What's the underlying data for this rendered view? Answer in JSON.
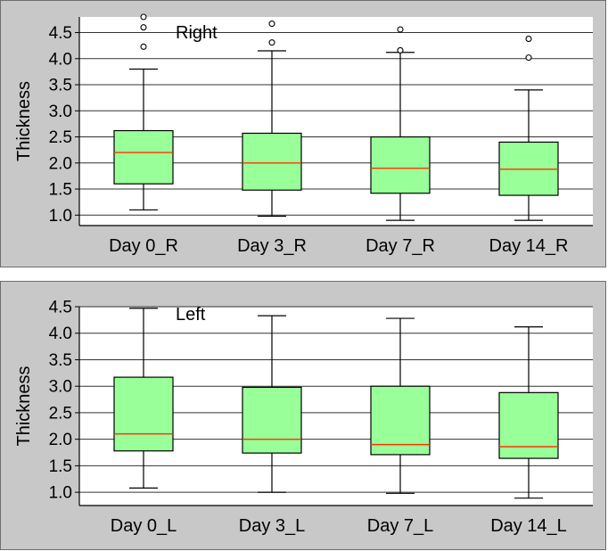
{
  "chart_data": [
    {
      "type": "box",
      "title": "Right",
      "xlabel": "",
      "ylabel": "Thickness",
      "ylim": [
        0.8,
        4.8
      ],
      "yticks": [
        1.0,
        1.5,
        2.0,
        2.5,
        3.0,
        3.5,
        4.0,
        4.5
      ],
      "ytick_labels": [
        "1.0",
        "1.5",
        "2.0",
        "2.5",
        "3.0",
        "3.5",
        "4.0",
        "4.5"
      ],
      "grid": true,
      "box_color": "#99ff99",
      "median_color": "#ff3300",
      "categories": [
        "Day 0_R",
        "Day 3_R",
        "Day 7_R",
        "Day 14_R"
      ],
      "boxes": [
        {
          "whisker_low": 1.1,
          "q1": 1.6,
          "median": 2.2,
          "q3": 2.62,
          "whisker_high": 3.8,
          "outliers": [
            4.23,
            4.6,
            4.8
          ]
        },
        {
          "whisker_low": 0.98,
          "q1": 1.48,
          "median": 2.0,
          "q3": 2.57,
          "whisker_high": 4.15,
          "outliers": [
            4.31,
            4.67
          ]
        },
        {
          "whisker_low": 0.9,
          "q1": 1.42,
          "median": 1.9,
          "q3": 2.5,
          "whisker_high": 4.12,
          "outliers": [
            4.16,
            4.56
          ]
        },
        {
          "whisker_low": 0.9,
          "q1": 1.38,
          "median": 1.88,
          "q3": 2.4,
          "whisker_high": 3.4,
          "outliers": [
            4.02,
            4.38
          ]
        }
      ]
    },
    {
      "type": "box",
      "title": "Left",
      "xlabel": "",
      "ylabel": "Thickness",
      "ylim": [
        0.75,
        4.5
      ],
      "yticks": [
        1.0,
        1.5,
        2.0,
        2.5,
        3.0,
        3.5,
        4.0,
        4.5
      ],
      "ytick_labels": [
        "1.0",
        "1.5",
        "2.0",
        "2.5",
        "3.0",
        "3.5",
        "4.0",
        "4.5"
      ],
      "grid": true,
      "box_color": "#99ff99",
      "median_color": "#ff3300",
      "categories": [
        "Day 0_L",
        "Day 3_L",
        "Day 7_L",
        "Day 14_L"
      ],
      "boxes": [
        {
          "whisker_low": 1.08,
          "q1": 1.78,
          "median": 2.1,
          "q3": 3.17,
          "whisker_high": 4.47,
          "outliers": []
        },
        {
          "whisker_low": 1.0,
          "q1": 1.74,
          "median": 2.0,
          "q3": 2.98,
          "whisker_high": 4.33,
          "outliers": []
        },
        {
          "whisker_low": 0.98,
          "q1": 1.71,
          "median": 1.9,
          "q3": 3.0,
          "whisker_high": 4.28,
          "outliers": []
        },
        {
          "whisker_low": 0.89,
          "q1": 1.64,
          "median": 1.86,
          "q3": 2.88,
          "whisker_high": 4.12,
          "outliers": []
        }
      ]
    }
  ]
}
